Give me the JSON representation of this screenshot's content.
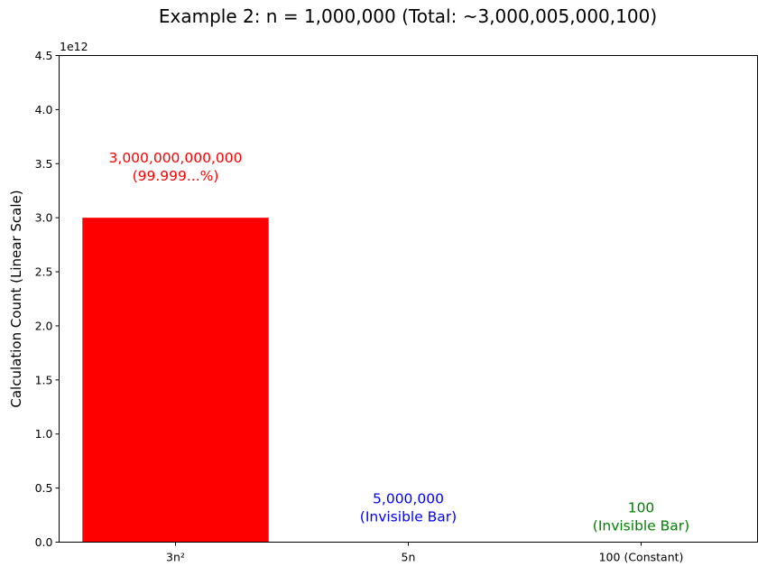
{
  "chart_data": {
    "type": "bar",
    "title": "Example 2: n = 1,000,000 (Total: ~3,000,005,000,100)",
    "xlabel": "",
    "ylabel": "Calculation Count (Linear Scale)",
    "y_offset_label": "1e12",
    "ylim": [
      0,
      4500000000000
    ],
    "yticks": [
      0,
      500000000000,
      1000000000000,
      1500000000000,
      2000000000000,
      2500000000000,
      3000000000000,
      3500000000000,
      4000000000000,
      4500000000000
    ],
    "ytick_labels": [
      "0.0",
      "0.5",
      "1.0",
      "1.5",
      "2.0",
      "2.5",
      "3.0",
      "3.5",
      "4.0",
      "4.5"
    ],
    "categories": [
      "3n²",
      "5n",
      "100 (Constant)"
    ],
    "values": [
      3000000000000,
      5000000,
      100
    ],
    "colors": [
      "#ff0000",
      "#0000ff",
      "#008000"
    ],
    "annotations": [
      [
        "3,000,000,000,000",
        "(99.999...%)"
      ],
      [
        "5,000,000",
        "(Invisible Bar)"
      ],
      [
        "100",
        "(Invisible Bar)"
      ]
    ],
    "grid": false,
    "legend": "none"
  }
}
